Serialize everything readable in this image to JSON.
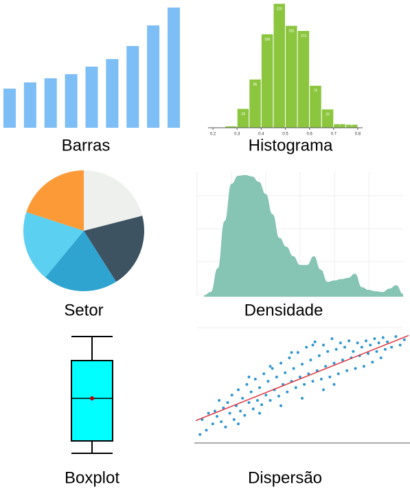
{
  "chart_data": [
    {
      "type": "bar",
      "title": "Barras",
      "categories": [
        null,
        null,
        null,
        null,
        null,
        null,
        null,
        null,
        null
      ],
      "values": [
        57,
        66,
        72,
        78,
        89,
        100,
        119,
        149,
        175
      ],
      "color": "#7cbef5",
      "ylim": [
        0,
        175
      ]
    },
    {
      "type": "histogram",
      "title": "Histograma",
      "bins": [
        0.25,
        0.3,
        0.35,
        0.4,
        0.45,
        0.5,
        0.55,
        0.6,
        0.65,
        0.7,
        0.75,
        0.8
      ],
      "values": [
        3,
        34,
        86,
        166,
        220,
        181,
        172,
        75,
        33,
        7,
        6
      ],
      "color": "#8cc63f",
      "xlim": [
        0.18,
        0.82
      ],
      "xticks": [
        0.2,
        0.3,
        0.4,
        0.5,
        0.6,
        0.7,
        0.8
      ],
      "ylim": [
        0,
        220
      ]
    },
    {
      "type": "pie",
      "title": "Setor",
      "values": [
        21,
        20,
        20,
        19,
        20
      ],
      "colors": [
        "#eef0ee",
        "#3d5361",
        "#2fa4d0",
        "#5bd0f0",
        "#fd9a38"
      ]
    },
    {
      "type": "area",
      "title": "Densidade",
      "x": [
        0,
        1,
        2,
        3,
        4,
        5,
        6,
        7,
        8,
        9,
        10,
        11,
        12,
        13,
        14,
        15,
        16,
        17,
        18,
        19,
        20,
        21,
        22,
        23,
        24,
        25,
        26,
        27,
        28,
        29
      ],
      "values": [
        2,
        7,
        42,
        112,
        167,
        179,
        180,
        178,
        170,
        152,
        122,
        87,
        74,
        60,
        47,
        47,
        60,
        40,
        22,
        24,
        26,
        28,
        34,
        14,
        10,
        8,
        7,
        12,
        17,
        4
      ],
      "color": "#86c4b4",
      "xlim": [
        -1,
        29
      ],
      "ylim": [
        0,
        185
      ]
    },
    {
      "type": "box",
      "title": "Boxplot",
      "min": 20,
      "q1": 38,
      "median": 100,
      "q3": 155,
      "max": 190,
      "color": "#00ffff",
      "ylim": [
        0,
        200
      ]
    },
    {
      "type": "scatter",
      "title": "Dispersão",
      "color": "#2e96d0",
      "x": [
        2,
        3,
        5,
        6,
        8,
        9,
        10,
        11,
        12,
        13,
        14,
        15,
        16,
        17,
        18,
        19,
        20,
        21,
        22,
        23,
        24,
        25,
        26,
        27,
        28,
        29,
        30,
        31,
        32,
        33,
        34,
        35,
        36,
        37,
        38,
        39,
        40,
        41,
        42,
        43,
        44,
        45,
        46,
        47,
        48,
        49,
        50,
        51,
        52,
        53,
        54,
        55,
        56,
        57,
        58,
        59,
        60,
        61,
        62,
        63,
        64,
        65,
        66,
        67,
        68,
        69,
        70,
        71,
        72,
        73,
        74,
        75,
        76,
        77,
        78,
        79,
        80,
        81,
        82,
        83,
        84,
        85,
        86,
        87,
        88,
        89,
        90,
        92,
        94,
        96,
        98,
        20,
        25,
        30,
        35,
        40,
        45,
        50,
        55,
        60,
        65
      ],
      "y": [
        8,
        22,
        12,
        28,
        18,
        30,
        25,
        40,
        20,
        33,
        15,
        38,
        28,
        45,
        22,
        35,
        50,
        30,
        42,
        26,
        55,
        38,
        48,
        32,
        60,
        40,
        52,
        36,
        65,
        45,
        58,
        40,
        70,
        50,
        62,
        44,
        75,
        55,
        66,
        48,
        80,
        58,
        70,
        52,
        85,
        62,
        74,
        55,
        90,
        65,
        78,
        58,
        95,
        68,
        82,
        60,
        92,
        72,
        86,
        62,
        98,
        75,
        88,
        65,
        94,
        78,
        90,
        68,
        96,
        80,
        86,
        70,
        94,
        82,
        90,
        72,
        96,
        84,
        92,
        76,
        98,
        86,
        94,
        80,
        99,
        88,
        95,
        90,
        100,
        92,
        97,
        18,
        62,
        28,
        72,
        35,
        85,
        42,
        92,
        50,
        55
      ],
      "trend": {
        "x": [
          0,
          100
        ],
        "y": [
          21,
          101
        ],
        "color": "#e0323c"
      },
      "xlim": [
        0,
        100
      ],
      "ylim": [
        0,
        100
      ]
    }
  ]
}
